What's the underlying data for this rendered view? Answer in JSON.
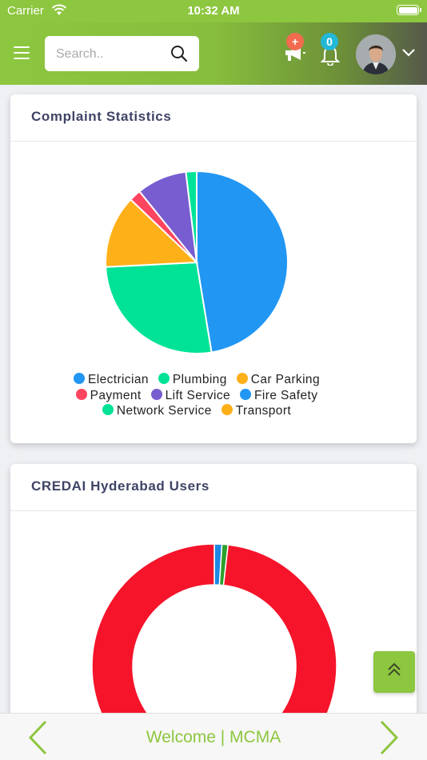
{
  "status_bar": {
    "carrier": "Carrier",
    "time": "10:32 AM"
  },
  "header": {
    "search_placeholder": "Search..",
    "notification_badge_plus": "+",
    "notification_badge_count": "0"
  },
  "complaint_card": {
    "title": "Complaint Statistics",
    "legend_rows": [
      [
        {
          "label": "Electrician",
          "color": "#2196f3"
        },
        {
          "label": "Plumbing",
          "color": "#00e396"
        },
        {
          "label": "Car Parking",
          "color": "#feb019"
        }
      ],
      [
        {
          "label": "Payment",
          "color": "#ff4560"
        },
        {
          "label": "Lift Service",
          "color": "#775dd0"
        },
        {
          "label": "Fire Safety",
          "color": "#2196f3"
        }
      ],
      [
        {
          "label": "Network Service",
          "color": "#00e396"
        },
        {
          "label": "Transport",
          "color": "#feb019"
        }
      ]
    ]
  },
  "users_card": {
    "title": "CREDAI Hyderabad Users"
  },
  "chart_data": [
    {
      "type": "pie",
      "title": "Complaint Statistics",
      "categories": [
        "Electrician",
        "Plumbing",
        "Car Parking",
        "Payment",
        "Lift Service",
        "Fire Safety",
        "Network Service",
        "Transport"
      ],
      "values": [
        47.4,
        26.8,
        12.9,
        2.1,
        8.9,
        0,
        1.9,
        0
      ],
      "colors": [
        "#2196f3",
        "#00e396",
        "#feb019",
        "#ff4560",
        "#775dd0",
        "#2196f3",
        "#00e396",
        "#feb019"
      ]
    },
    {
      "type": "donut",
      "title": "CREDAI Hyderabad Users",
      "values": [
        1,
        0.8,
        98.2
      ],
      "colors": [
        "#1e88e5",
        "#2ca02c",
        "#f5142a"
      ]
    }
  ],
  "bottom_bar": {
    "title": "Welcome | MCMA"
  }
}
